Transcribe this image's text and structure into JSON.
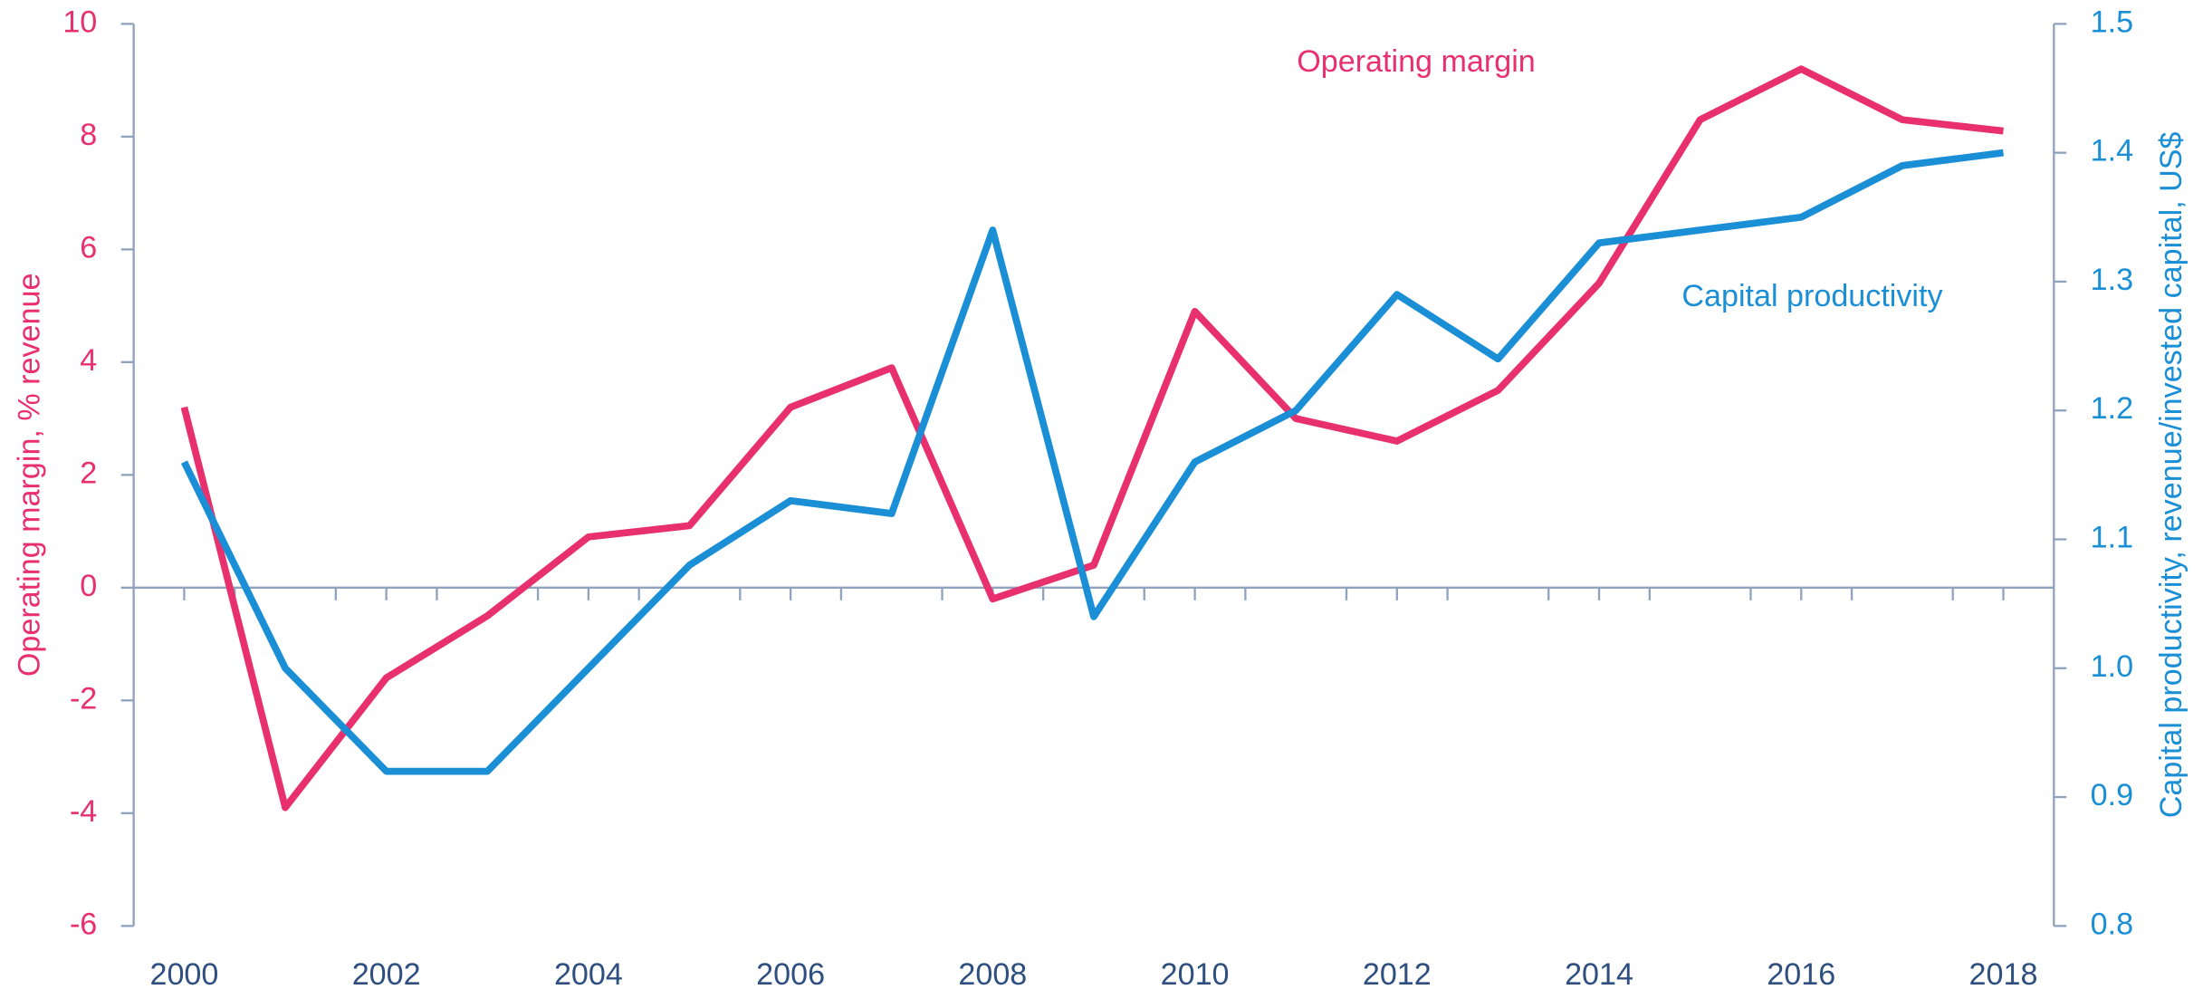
{
  "chart_data": {
    "type": "line",
    "annotations": [
      "Operating margin",
      "Capital productivity"
    ],
    "ylabel": "Operating margin, % revenue",
    "y2label": "Capital productivity, revenue/invested capital, US$",
    "x": [
      2000,
      2001,
      2002,
      2003,
      2004,
      2005,
      2006,
      2007,
      2008,
      2009,
      2010,
      2011,
      2012,
      2013,
      2014,
      2015,
      2016,
      2017,
      2018
    ],
    "xlim": [
      1999.5,
      2018.5
    ],
    "xticks": [
      2000,
      2002,
      2004,
      2006,
      2008,
      2010,
      2012,
      2014,
      2016,
      2018
    ],
    "ylim": [
      -6,
      10
    ],
    "yticks": [
      -6,
      -4,
      -2,
      0,
      2,
      4,
      6,
      8,
      10
    ],
    "y2lim": [
      0.8,
      1.5
    ],
    "y2ticks": [
      {
        "value": 0.8,
        "label": "0.8"
      },
      {
        "value": 0.9,
        "label": "0.9"
      },
      {
        "value": 1.0,
        "label": "1.0"
      },
      {
        "value": 1.1,
        "label": "1.1"
      },
      {
        "value": 1.2,
        "label": "1.2"
      },
      {
        "value": 1.3,
        "label": "1.3"
      },
      {
        "value": 1.4,
        "label": "1.4"
      },
      {
        "value": 1.5,
        "label": "1.5"
      }
    ],
    "series": [
      {
        "name": "Operating margin",
        "color": "#e8306e",
        "values": [
          3.2,
          -3.9,
          -1.6,
          -0.5,
          0.9,
          1.1,
          3.2,
          3.9,
          -0.2,
          0.4,
          4.9,
          3.0,
          2.6,
          3.5,
          5.4,
          8.3,
          9.2,
          8.3,
          8.1
        ]
      },
      {
        "name": "Capital productivity",
        "color": "#1a8fd6",
        "axis": "y2",
        "values": [
          1.16,
          1.0,
          0.92,
          0.92,
          1.0,
          1.08,
          1.13,
          1.12,
          1.34,
          1.04,
          1.16,
          1.2,
          1.29,
          1.24,
          1.33,
          1.34,
          1.35,
          1.39,
          1.4
        ]
      }
    ]
  }
}
